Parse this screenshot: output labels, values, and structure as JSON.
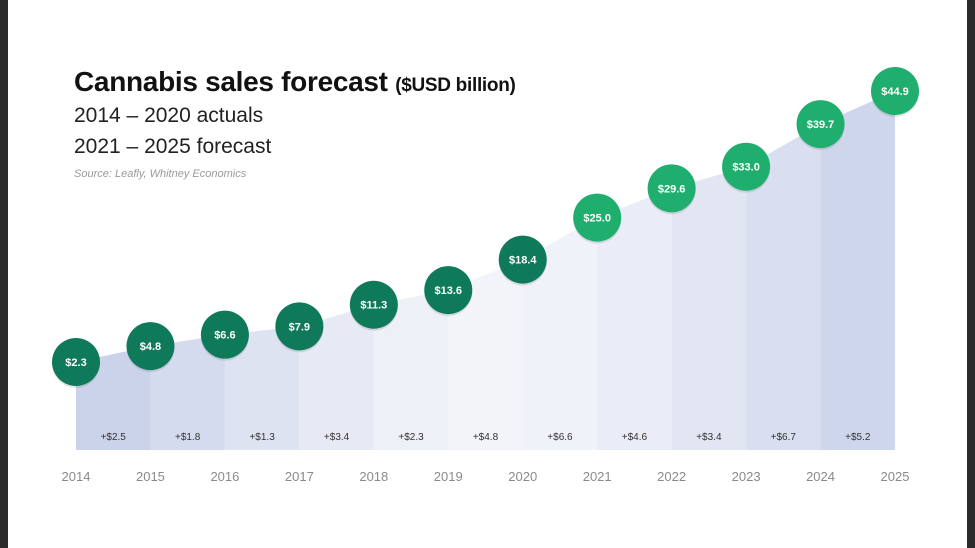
{
  "header": {
    "title": "Cannabis sales forecast",
    "unit": "($USD billion)",
    "subtitle1": "2014 – 2020 actuals",
    "subtitle2": "2021 – 2025 forecast",
    "source": "Source: Leafly, Whitney Economics"
  },
  "colors": {
    "actual_bubble": "#0f7a5a",
    "forecast_bubble": "#1fae6e",
    "area_light": "#f3f4fa",
    "area_dark": "#c9d2ea"
  },
  "chart_data": {
    "type": "area",
    "title": "Cannabis sales forecast ($USD billion)",
    "x": [
      "2014",
      "2015",
      "2016",
      "2017",
      "2018",
      "2019",
      "2020",
      "2021",
      "2022",
      "2023",
      "2024",
      "2025"
    ],
    "values": [
      2.3,
      4.8,
      6.6,
      7.9,
      11.3,
      13.6,
      18.4,
      25.0,
      29.6,
      33.0,
      39.7,
      44.9
    ],
    "value_labels": [
      "$2.3",
      "$4.8",
      "$6.6",
      "$7.9",
      "$11.3",
      "$13.6",
      "$18.4",
      "$25.0",
      "$29.6",
      "$33.0",
      "$39.7",
      "$44.9"
    ],
    "deltas": [
      "+$2.5",
      "+$1.8",
      "+$1.3",
      "+$3.4",
      "+$2.3",
      "+$4.8",
      "+$6.6",
      "+$4.6",
      "+$3.4",
      "+$6.7",
      "+$5.2"
    ],
    "actual_years": [
      "2014",
      "2015",
      "2016",
      "2017",
      "2018",
      "2019",
      "2020"
    ],
    "forecast_years": [
      "2021",
      "2022",
      "2023",
      "2024",
      "2025"
    ],
    "ylim": [
      0,
      50
    ],
    "grid": false,
    "legend": "none"
  }
}
